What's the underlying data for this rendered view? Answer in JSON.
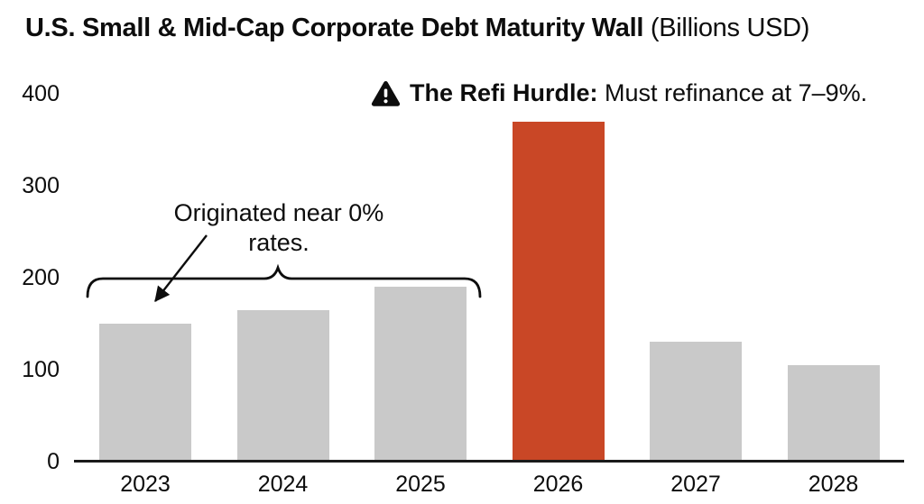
{
  "title": {
    "bold": "U.S. Small & Mid-Cap Corporate Debt Maturity Wall",
    "regular": " (Billions USD)"
  },
  "annotations": {
    "refi": {
      "icon": "warning-triangle-icon",
      "bold": "The Refi Hurdle:",
      "regular": " Must refinance at 7–9%."
    },
    "originated": {
      "line1": "Originated near 0%",
      "line2": "rates."
    }
  },
  "chart_data": {
    "type": "bar",
    "title": "U.S. Small & Mid-Cap Corporate Debt Maturity Wall (Billions USD)",
    "categories": [
      "2023",
      "2024",
      "2025",
      "2026",
      "2027",
      "2028"
    ],
    "values": [
      150,
      165,
      190,
      370,
      130,
      105
    ],
    "highlight_category": "2026",
    "highlight_value": 370,
    "xlabel": "",
    "ylabel": "",
    "ylim": [
      0,
      400
    ],
    "yticks": [
      0,
      100,
      200,
      300,
      400
    ],
    "grid": false,
    "legend": false,
    "bar_color": "#c9c9c9",
    "highlight_color": "#c94726",
    "axis_color": "#1a1a1a",
    "brace_span_categories": [
      "2023",
      "2024",
      "2025"
    ]
  }
}
